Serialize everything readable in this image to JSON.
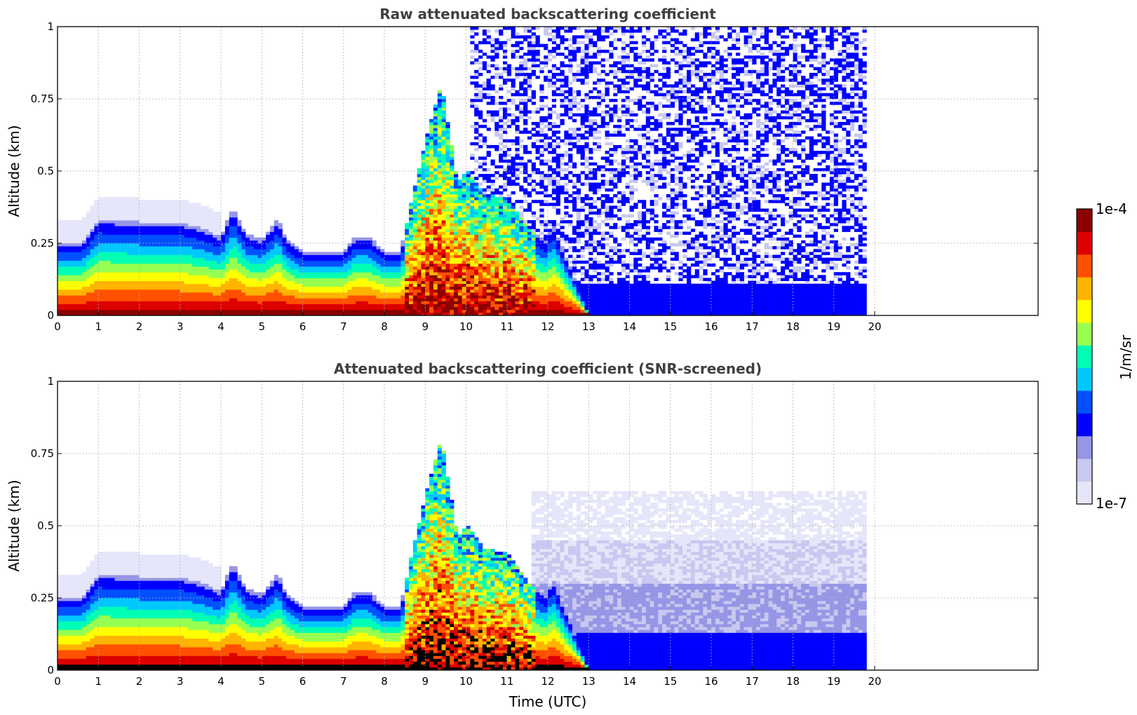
{
  "colors": {
    "scale": [
      "#e6e6fa",
      "#c8c8f0",
      "#9696e6",
      "#0000ff",
      "#0050ff",
      "#00c8ff",
      "#00ffb4",
      "#96ff50",
      "#ffff00",
      "#ffb400",
      "#ff5000",
      "#dc0000",
      "#8b0000"
    ],
    "masked": "#000000",
    "grid": "#b0b0b0"
  },
  "chart_data": [
    {
      "type": "heatmap",
      "title": "Raw attenuated backscattering coefficient",
      "xlabel": "",
      "ylabel": "Altitude (km)",
      "xlim": [
        0,
        24
      ],
      "ylim": [
        0,
        1
      ],
      "xticks": [
        "0",
        "1",
        "2",
        "3",
        "4",
        "5",
        "6",
        "7",
        "8",
        "9",
        "10",
        "11",
        "12",
        "13",
        "14",
        "15",
        "16",
        "17",
        "18",
        "19",
        "20"
      ],
      "yticks": [
        "0",
        "0.25",
        "0.5",
        "0.75",
        "1"
      ],
      "grid": true,
      "data_end_hour": 19.8,
      "profile": {
        "hours": [
          0,
          0.6,
          1.0,
          2.0,
          3.0,
          3.5,
          4.0,
          4.3,
          4.6,
          5.0,
          5.4,
          5.6,
          6.0,
          7.0,
          7.3,
          7.6,
          8.0,
          8.4,
          8.6,
          9.0,
          9.4,
          9.8,
          10.0,
          10.4,
          11.0,
          11.5,
          12.0,
          12.1,
          13.0,
          15.0,
          18.0,
          18.3,
          18.7,
          19.8
        ],
        "top_km": [
          0.25,
          0.25,
          0.33,
          0.32,
          0.32,
          0.3,
          0.27,
          0.37,
          0.28,
          0.26,
          0.33,
          0.26,
          0.22,
          0.22,
          0.27,
          0.27,
          0.22,
          0.22,
          0.35,
          0.6,
          0.8,
          0.45,
          0.5,
          0.42,
          0.4,
          0.3,
          0.25,
          0.32,
          0.0,
          0.0,
          0.0,
          0.0,
          0.0,
          0.0
        ]
      }
    },
    {
      "type": "heatmap",
      "title": "Attenuated backscattering coefficient (SNR-screened)",
      "xlabel": "Time (UTC)",
      "ylabel": "Altitude (km)",
      "xlim": [
        0,
        24
      ],
      "ylim": [
        0,
        1
      ],
      "xticks": [
        "0",
        "1",
        "2",
        "3",
        "4",
        "5",
        "6",
        "7",
        "8",
        "9",
        "10",
        "11",
        "12",
        "13",
        "14",
        "15",
        "16",
        "17",
        "18",
        "19",
        "20"
      ],
      "yticks": [
        "0",
        "0.25",
        "0.5",
        "0.75",
        "1"
      ],
      "grid": true,
      "data_end_hour": 19.8,
      "mask_color": "#000000"
    }
  ],
  "colorbar": {
    "max_label": "1e-4",
    "min_label": "1e-7",
    "unit_label": "1/m/sr"
  }
}
